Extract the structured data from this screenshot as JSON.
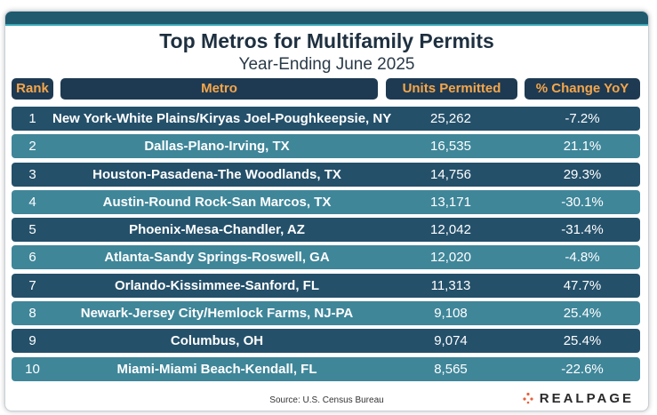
{
  "title": "Top Metros for Multifamily Permits",
  "subtitle": "Year-Ending June 2025",
  "headers": {
    "rank": "Rank",
    "metro": "Metro",
    "units": "Units Permitted",
    "change": "% Change YoY"
  },
  "source": "Source: U.S. Census Bureau",
  "logo": {
    "text": "REALPAGE",
    "icon": "realpage-dots-logo"
  },
  "colors": {
    "accent": "#1f5a6e",
    "header_bg": "#1e3a52",
    "header_text": "#f5a64a",
    "row_dark": "#24506a",
    "row_light": "#3f8699",
    "logo_dot": "#e8603c"
  },
  "chart_data": {
    "type": "table",
    "title": "Top Metros for Multifamily Permits",
    "subtitle": "Year-Ending June 2025",
    "columns": [
      "Rank",
      "Metro",
      "Units Permitted",
      "% Change YoY"
    ],
    "rows": [
      {
        "rank": "1",
        "metro": "New York-White Plains/Kiryas Joel-Poughkeepsie, NY",
        "units": "25,262",
        "change": "-7.2%"
      },
      {
        "rank": "2",
        "metro": "Dallas-Plano-Irving, TX",
        "units": "16,535",
        "change": "21.1%"
      },
      {
        "rank": "3",
        "metro": "Houston-Pasadena-The Woodlands, TX",
        "units": "14,756",
        "change": "29.3%"
      },
      {
        "rank": "4",
        "metro": "Austin-Round Rock-San Marcos, TX",
        "units": "13,171",
        "change": "-30.1%"
      },
      {
        "rank": "5",
        "metro": "Phoenix-Mesa-Chandler, AZ",
        "units": "12,042",
        "change": "-31.4%"
      },
      {
        "rank": "6",
        "metro": "Atlanta-Sandy Springs-Roswell, GA",
        "units": "12,020",
        "change": "-4.8%"
      },
      {
        "rank": "7",
        "metro": "Orlando-Kissimmee-Sanford, FL",
        "units": "11,313",
        "change": "47.7%"
      },
      {
        "rank": "8",
        "metro": "Newark-Jersey City/Hemlock Farms, NJ-PA",
        "units": "9,108",
        "change": "25.4%"
      },
      {
        "rank": "9",
        "metro": "Columbus, OH",
        "units": "9,074",
        "change": "25.4%"
      },
      {
        "rank": "10",
        "metro": "Miami-Miami Beach-Kendall, FL",
        "units": "8,565",
        "change": "-22.6%"
      }
    ]
  }
}
